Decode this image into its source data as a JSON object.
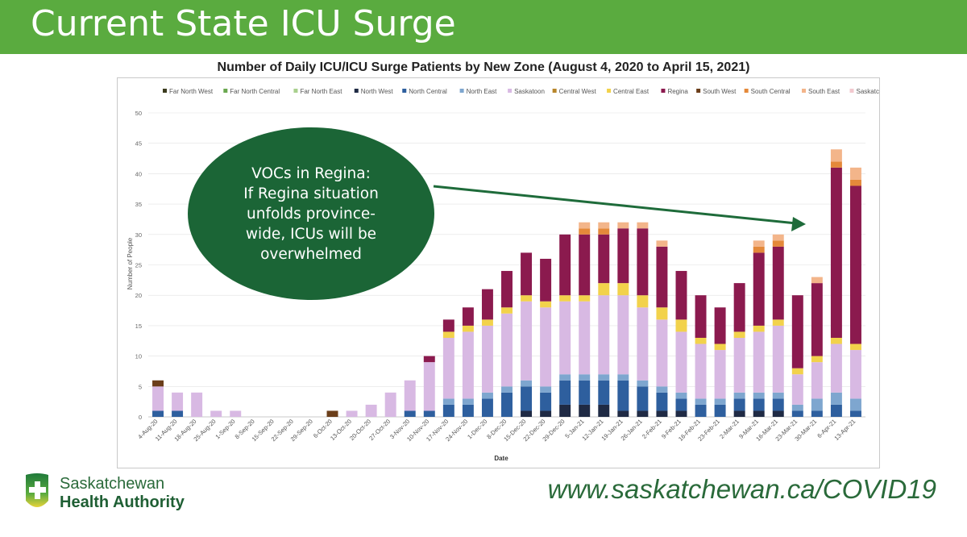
{
  "slide": {
    "title": "Current State ICU Surge",
    "website": "www.saskatchewan.ca/COVID19",
    "logo": {
      "line1": "Saskatchewan",
      "line2": "Health Authority"
    },
    "callout": {
      "lines": [
        "VOCs in Regina:",
        "If Regina situation",
        "unfolds province-",
        "wide, ICUs will be",
        "overwhelmed"
      ]
    }
  },
  "colors": {
    "banner": "#5aab3f",
    "callout": "#1b6536",
    "arrow": "#1e6b3a"
  },
  "chart_data": {
    "type": "bar",
    "stacked": true,
    "title": "Number of Daily ICU/ICU Surge Patients by New Zone (August 4, 2020 to April 15, 2021)",
    "xlabel": "Date",
    "ylabel": "Number of People",
    "ylim": [
      0,
      50
    ],
    "yticks": [
      0,
      5,
      10,
      15,
      20,
      25,
      30,
      35,
      40,
      45,
      50
    ],
    "grid": true,
    "legend_position": "top",
    "xtick_labels": [
      "4-Aug-20",
      "11-Aug-20",
      "18-Aug-20",
      "25-Aug-20",
      "1-Sep-20",
      "8-Sep-20",
      "15-Sep-20",
      "22-Sep-20",
      "29-Sep-20",
      "6-Oct-20",
      "13-Oct-20",
      "20-Oct-20",
      "27-Oct-20",
      "3-Nov-20",
      "10-Nov-20",
      "17-Nov-20",
      "24-Nov-20",
      "1-Dec-20",
      "8-Dec-20",
      "15-Dec-20",
      "22-Dec-20",
      "29-Dec-20",
      "5-Jan-21",
      "12-Jan-21",
      "19-Jan-21",
      "26-Jan-21",
      "2-Feb-21",
      "9-Feb-21",
      "16-Feb-21",
      "23-Feb-21",
      "2-Mar-21",
      "9-Mar-21",
      "16-Mar-21",
      "23-Mar-21",
      "30-Mar-21",
      "6-Apr-21",
      "13-Apr-21"
    ],
    "series": [
      {
        "name": "Far North West",
        "color": "#3b3b1e",
        "values": [
          0,
          0,
          0,
          0,
          0,
          0,
          0,
          0,
          0,
          0,
          0,
          0,
          0,
          0,
          0,
          0,
          0,
          0,
          0,
          0,
          0,
          0,
          0,
          0,
          0,
          0,
          0,
          0,
          0,
          0,
          0,
          0,
          0,
          0,
          0,
          0,
          0
        ]
      },
      {
        "name": "Far North Central",
        "color": "#6aa84f",
        "values": [
          0,
          0,
          0,
          0,
          0,
          0,
          0,
          0,
          0,
          0,
          0,
          0,
          0,
          0,
          0,
          0,
          0,
          0,
          0,
          0,
          0,
          0,
          0,
          0,
          0,
          0,
          0,
          0,
          0,
          0,
          0,
          0,
          0,
          0,
          0,
          0,
          0
        ]
      },
      {
        "name": "Far North East",
        "color": "#a9d08e",
        "values": [
          0,
          0,
          0,
          0,
          0,
          0,
          0,
          0,
          0,
          0,
          0,
          0,
          0,
          0,
          0,
          0,
          0,
          0,
          0,
          0,
          0,
          0,
          0,
          0,
          0,
          0,
          0,
          0,
          0,
          0,
          0,
          0,
          0,
          0,
          0,
          0,
          0
        ]
      },
      {
        "name": "North West",
        "color": "#1f2a44",
        "values": [
          0,
          0,
          0,
          0,
          0,
          0,
          0,
          0,
          0,
          0,
          0,
          0,
          0,
          0,
          0,
          0,
          0,
          0,
          0,
          1,
          1,
          2,
          2,
          2,
          1,
          1,
          1,
          1,
          0,
          0,
          1,
          1,
          1,
          0,
          0,
          0,
          0
        ]
      },
      {
        "name": "North Central",
        "color": "#2e5f9e",
        "values": [
          1,
          1,
          0,
          0,
          0,
          0,
          0,
          0,
          0,
          0,
          0,
          0,
          0,
          1,
          1,
          2,
          2,
          3,
          4,
          4,
          3,
          4,
          4,
          4,
          5,
          4,
          3,
          2,
          2,
          2,
          2,
          2,
          2,
          1,
          1,
          2,
          1
        ]
      },
      {
        "name": "North East",
        "color": "#7ea6cf",
        "values": [
          0,
          0,
          0,
          0,
          0,
          0,
          0,
          0,
          0,
          0,
          0,
          0,
          0,
          0,
          0,
          1,
          1,
          1,
          1,
          1,
          1,
          1,
          1,
          1,
          1,
          1,
          1,
          1,
          1,
          1,
          1,
          1,
          1,
          1,
          2,
          2,
          2
        ]
      },
      {
        "name": "Saskatoon",
        "color": "#d8b9e3",
        "values": [
          4,
          3,
          4,
          1,
          1,
          0,
          0,
          0,
          0,
          0,
          1,
          2,
          4,
          5,
          8,
          10,
          11,
          11,
          12,
          13,
          13,
          12,
          12,
          13,
          13,
          12,
          11,
          10,
          9,
          8,
          9,
          10,
          11,
          5,
          6,
          8,
          8
        ]
      },
      {
        "name": "Central West",
        "color": "#b8862b",
        "values": [
          0,
          0,
          0,
          0,
          0,
          0,
          0,
          0,
          0,
          0,
          0,
          0,
          0,
          0,
          0,
          0,
          0,
          0,
          0,
          0,
          0,
          0,
          0,
          0,
          0,
          0,
          0,
          0,
          0,
          0,
          0,
          0,
          0,
          0,
          0,
          0,
          0
        ]
      },
      {
        "name": "Central East",
        "color": "#f2d24b",
        "values": [
          0,
          0,
          0,
          0,
          0,
          0,
          0,
          0,
          0,
          0,
          0,
          0,
          0,
          0,
          0,
          1,
          1,
          1,
          1,
          1,
          1,
          1,
          1,
          2,
          2,
          2,
          2,
          2,
          1,
          1,
          1,
          1,
          1,
          1,
          1,
          1,
          1
        ]
      },
      {
        "name": "Regina",
        "color": "#8b1a4e",
        "values": [
          0,
          0,
          0,
          0,
          0,
          0,
          0,
          0,
          0,
          0,
          0,
          0,
          0,
          0,
          1,
          2,
          3,
          5,
          6,
          7,
          7,
          10,
          10,
          8,
          9,
          11,
          10,
          8,
          7,
          6,
          8,
          12,
          12,
          12,
          12,
          28,
          26
        ]
      },
      {
        "name": "South West",
        "color": "#6b3e1a",
        "values": [
          1,
          0,
          0,
          0,
          0,
          0,
          0,
          0,
          0,
          1,
          0,
          0,
          0,
          0,
          0,
          0,
          0,
          0,
          0,
          0,
          0,
          0,
          0,
          0,
          0,
          0,
          0,
          0,
          0,
          0,
          0,
          0,
          0,
          0,
          0,
          0,
          0
        ]
      },
      {
        "name": "South Central",
        "color": "#e4893a",
        "values": [
          0,
          0,
          0,
          0,
          0,
          0,
          0,
          0,
          0,
          0,
          0,
          0,
          0,
          0,
          0,
          0,
          0,
          0,
          0,
          0,
          0,
          0,
          1,
          1,
          0,
          0,
          0,
          0,
          0,
          0,
          0,
          1,
          1,
          0,
          0,
          1,
          1
        ]
      },
      {
        "name": "South East",
        "color": "#f3b58a",
        "values": [
          0,
          0,
          0,
          0,
          0,
          0,
          0,
          0,
          0,
          0,
          0,
          0,
          0,
          0,
          0,
          0,
          0,
          0,
          0,
          0,
          0,
          0,
          1,
          1,
          1,
          1,
          1,
          0,
          0,
          0,
          0,
          1,
          1,
          0,
          1,
          2,
          2
        ]
      },
      {
        "name": "Saskatchewan",
        "color": "#f2c9cf",
        "values": [
          0,
          0,
          0,
          0,
          0,
          0,
          0,
          0,
          0,
          0,
          0,
          0,
          0,
          0,
          0,
          0,
          0,
          0,
          0,
          0,
          0,
          0,
          0,
          0,
          0,
          0,
          0,
          0,
          0,
          0,
          0,
          0,
          0,
          0,
          0,
          0,
          0
        ]
      }
    ]
  }
}
